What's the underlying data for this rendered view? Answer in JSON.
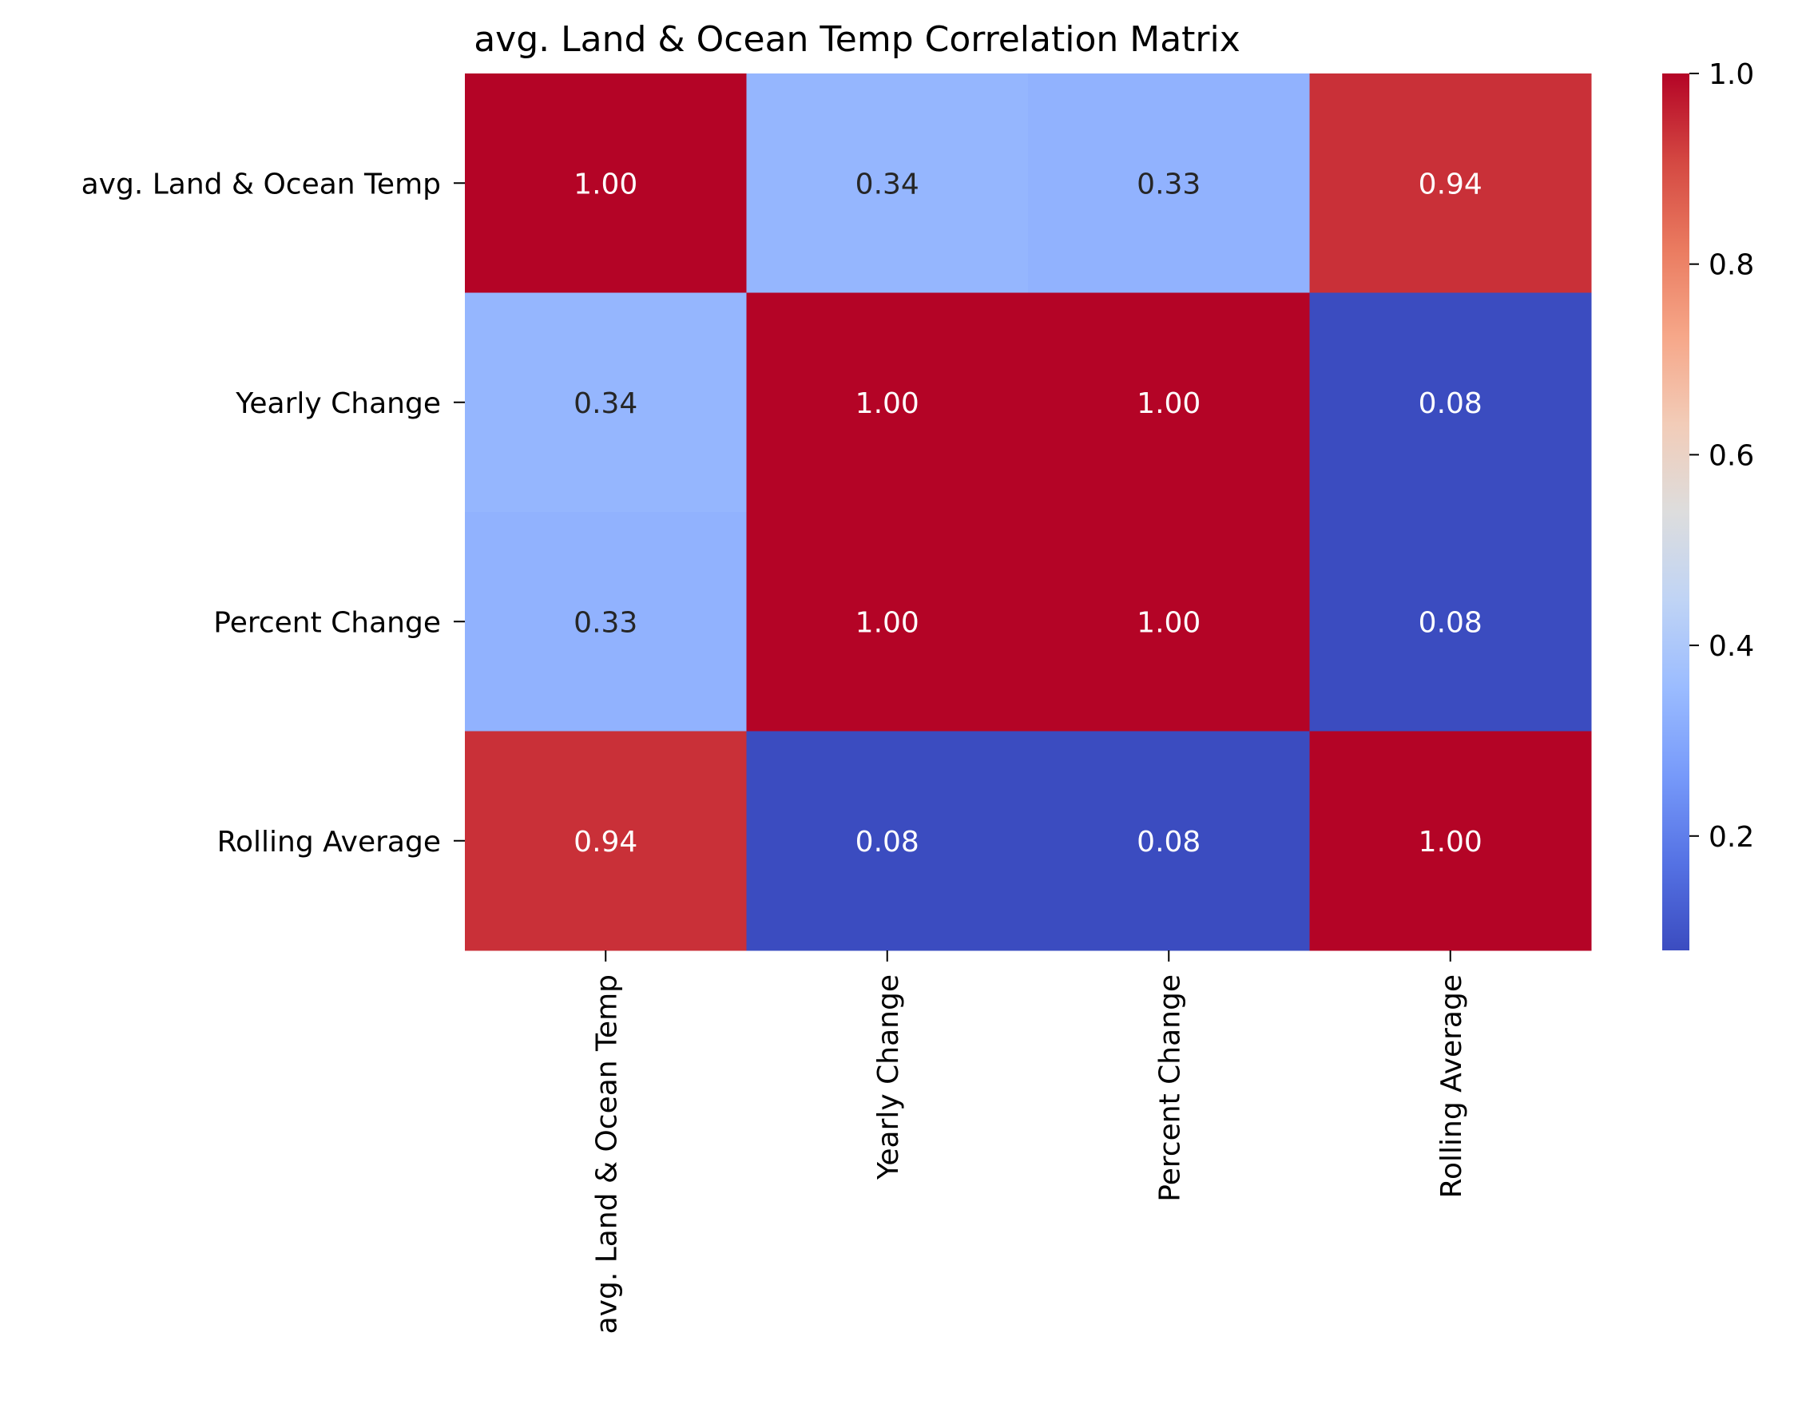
{
  "chart_data": {
    "type": "heatmap",
    "title": "avg. Land & Ocean Temp Correlation Matrix",
    "row_labels": [
      "avg. Land & Ocean Temp",
      "Yearly Change",
      "Percent Change",
      "Rolling Average"
    ],
    "col_labels": [
      "avg. Land & Ocean Temp",
      "Yearly Change",
      "Percent Change",
      "Rolling Average"
    ],
    "values": [
      [
        1.0,
        0.34,
        0.33,
        0.94
      ],
      [
        0.34,
        1.0,
        1.0,
        0.08
      ],
      [
        0.33,
        1.0,
        1.0,
        0.08
      ],
      [
        0.94,
        0.08,
        0.08,
        1.0
      ]
    ],
    "value_labels": [
      [
        "1.00",
        "0.34",
        "0.33",
        "0.94"
      ],
      [
        "0.34",
        "1.00",
        "1.00",
        "0.08"
      ],
      [
        "0.33",
        "1.00",
        "1.00",
        "0.08"
      ],
      [
        "0.94",
        "0.08",
        "0.08",
        "1.00"
      ]
    ],
    "colormap": "coolwarm",
    "vmin": 0.08,
    "vmax": 1.0,
    "colorbar": {
      "ticks": [
        0.2,
        0.4,
        0.6,
        0.8,
        1.0
      ],
      "tick_labels": [
        "0.2",
        "0.4",
        "0.6",
        "0.8",
        "1.0"
      ]
    },
    "annotation_colors": {
      "dark": "#262626",
      "light": "#ffffff"
    }
  }
}
